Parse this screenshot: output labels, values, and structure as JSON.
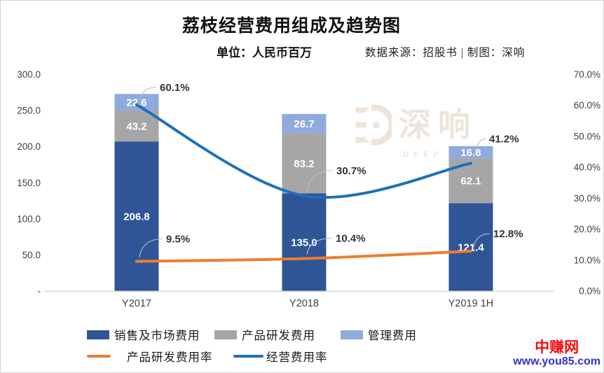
{
  "header": {
    "title": "荔枝经营费用组成及趋势图",
    "unit_label": "单位：人民币百万",
    "source_label": "数据来源：招股书 | 制图：深响"
  },
  "watermark": {
    "brand_cn": "深响",
    "brand_en": "DEEP ECHO"
  },
  "site_watermark": {
    "name": "中赚网",
    "url": "www.you85.com"
  },
  "chart_data": {
    "type": "bar+line",
    "stacked": true,
    "grid": false,
    "legend_position": "bottom",
    "categories": [
      "Y2017",
      "Y2018",
      "Y2019 1H"
    ],
    "bar_series": [
      {
        "name": "销售及市场费用",
        "color": "#2F5597",
        "values": [
          206.8,
          135.0,
          121.4
        ],
        "labels": [
          "206.8",
          "135.0",
          "121.4"
        ]
      },
      {
        "name": "产品研发费用",
        "color": "#A6A6A6",
        "values": [
          43.2,
          83.2,
          62.1
        ],
        "labels": [
          "43.2",
          "83.2",
          "62.1"
        ]
      },
      {
        "name": "管理费用",
        "color": "#8FAADC",
        "values": [
          22.6,
          26.7,
          16.8
        ],
        "labels": [
          "22.6",
          "26.7",
          "16.8"
        ]
      }
    ],
    "line_series": [
      {
        "name": "产品研发费用率",
        "color": "#ED7D31",
        "values": [
          9.5,
          10.4,
          12.8
        ],
        "labels": [
          "9.5%",
          "10.4%",
          "12.8%"
        ]
      },
      {
        "name": "经营费用率",
        "color": "#1F70B7",
        "values": [
          60.1,
          30.7,
          41.2
        ],
        "labels": [
          "60.1%",
          "30.7%",
          "41.2%"
        ]
      }
    ],
    "left_axis": {
      "min": 0,
      "max": 300,
      "tick_labels": [
        "300.0",
        "250.0",
        "200.0",
        "150.0",
        "100.0",
        "50.0",
        "-"
      ]
    },
    "right_axis": {
      "min": 0,
      "max": 70,
      "tick_labels": [
        "70.0%",
        "60.0%",
        "50.0%",
        "40.0%",
        "30.0%",
        "20.0%",
        "10.0%",
        "0.0%"
      ]
    },
    "label_text_color": "#ffffff",
    "pct_label_color": "#333333",
    "axis_text_color": "#404040",
    "leader_line_color": "#BFBFBF",
    "baseline_color": "#D9D9D9"
  }
}
